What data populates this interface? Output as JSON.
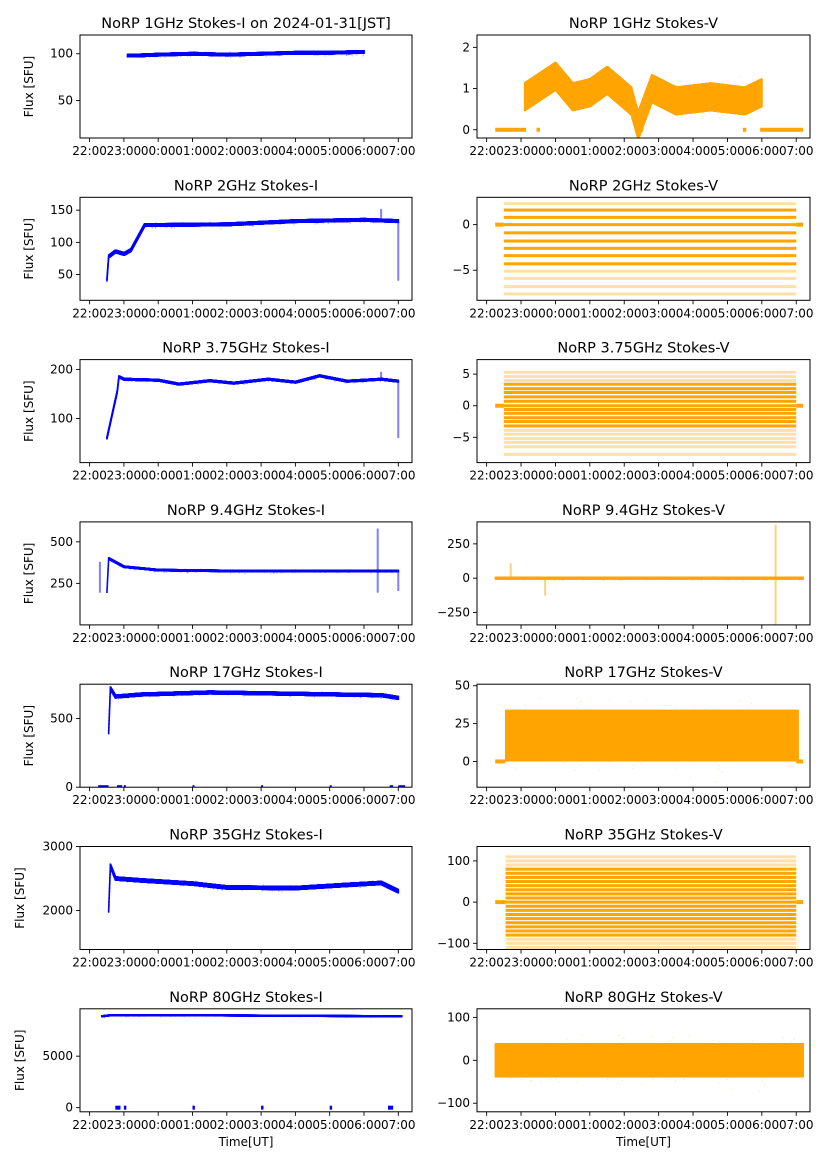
{
  "figure": {
    "colors": {
      "stokes_i": "#0000ff",
      "stokes_v": "#ffa500",
      "axes": "#000000"
    },
    "x_ticks": [
      "22:00",
      "23:00",
      "00:00",
      "01:00",
      "02:00",
      "03:00",
      "04:00",
      "05:00",
      "06:00",
      "07:00"
    ],
    "x_tick_hours": [
      0,
      1,
      2,
      3,
      4,
      5,
      6,
      7,
      8,
      9
    ],
    "x_range_hours": [
      -0.28,
      9.4
    ],
    "xlabel": "Time[UT]",
    "ylabel": "Flux [SFU]"
  },
  "chart_data": [
    {
      "id": "1ghz-i",
      "type": "scatter",
      "title": "NoRP 1GHz Stokes-I on 2024-01-31[JST]",
      "ylabel": "Flux [SFU]",
      "xlabel": "",
      "color": "#0000ff",
      "ylim": [
        10,
        120
      ],
      "yticks": [
        50,
        100
      ],
      "series": {
        "start_h": 1.1,
        "end_h": 8.0,
        "rise_to_h": 1.3,
        "start_value": 50,
        "level": [
          [
            1.3,
            98
          ],
          [
            2.0,
            99
          ],
          [
            3.0,
            100
          ],
          [
            4.0,
            99
          ],
          [
            5.0,
            100
          ],
          [
            6.0,
            101
          ],
          [
            7.0,
            101
          ],
          [
            8.0,
            102
          ]
        ],
        "spread": 2
      },
      "dropouts": []
    },
    {
      "id": "1ghz-v",
      "type": "scatter",
      "title": "NoRP 1GHz Stokes-V",
      "ylabel": "",
      "xlabel": "",
      "color": "#ffa500",
      "ylim": [
        -0.2,
        2.3
      ],
      "yticks": [
        0,
        1,
        2
      ],
      "series": {
        "start_h": 1.1,
        "end_h": 8.0,
        "level": [
          [
            1.1,
            0.8
          ],
          [
            2.0,
            1.3
          ],
          [
            2.5,
            0.8
          ],
          [
            3.0,
            0.9
          ],
          [
            3.5,
            1.2
          ],
          [
            4.2,
            0.7
          ],
          [
            4.4,
            0.1
          ],
          [
            4.8,
            1.0
          ],
          [
            5.5,
            0.7
          ],
          [
            6.5,
            0.8
          ],
          [
            7.5,
            0.7
          ],
          [
            8.0,
            0.9
          ]
        ],
        "spread": 0.35
      },
      "zero_segments": [
        [
          0.25,
          1.15
        ],
        [
          1.45,
          1.55
        ],
        [
          4.45,
          4.55
        ],
        [
          7.45,
          7.55
        ],
        [
          7.95,
          9.2
        ]
      ]
    },
    {
      "id": "2ghz-i",
      "type": "scatter",
      "title": "NoRP 2GHz Stokes-I",
      "ylabel": "Flux [SFU]",
      "xlabel": "",
      "color": "#0000ff",
      "ylim": [
        10,
        170
      ],
      "yticks": [
        50,
        100,
        150
      ],
      "series": {
        "start_h": 0.5,
        "end_h": 9.0,
        "level": [
          [
            0.5,
            42
          ],
          [
            0.55,
            78
          ],
          [
            0.75,
            86
          ],
          [
            1.0,
            82
          ],
          [
            1.2,
            88
          ],
          [
            1.6,
            127
          ],
          [
            2.0,
            127
          ],
          [
            4.0,
            128
          ],
          [
            6.0,
            133
          ],
          [
            8.0,
            135
          ],
          [
            9.0,
            133
          ]
        ],
        "spread": 3
      },
      "spikes": [
        [
          8.5,
          152
        ],
        [
          9.0,
          42
        ]
      ]
    },
    {
      "id": "2ghz-v",
      "type": "bands",
      "title": "NoRP 2GHz Stokes-V",
      "ylabel": "",
      "xlabel": "",
      "color": "#ffa500",
      "ylim": [
        -8.3,
        3
      ],
      "yticks": [
        0,
        -5
      ],
      "bands": {
        "start_h": 0.5,
        "end_h": 9.0,
        "values": [
          2.3,
          1.6,
          0.8,
          0,
          -0.9,
          -1.8,
          -2.6,
          -3.4,
          -4.3,
          -5.1,
          -5.9,
          -6.8,
          -7.6
        ],
        "dense_range": [
          -4.3,
          1.6
        ]
      },
      "zero_segments": [
        [
          0.25,
          0.5
        ],
        [
          9.0,
          9.2
        ]
      ]
    },
    {
      "id": "375ghz-i",
      "type": "scatter",
      "title": "NoRP 3.75GHz Stokes-I",
      "ylabel": "Flux [SFU]",
      "xlabel": "",
      "color": "#0000ff",
      "ylim": [
        10,
        220
      ],
      "yticks": [
        100,
        200
      ],
      "series": {
        "start_h": 0.5,
        "end_h": 9.0,
        "level": [
          [
            0.5,
            60
          ],
          [
            0.8,
            155
          ],
          [
            0.85,
            185
          ],
          [
            1.0,
            180
          ],
          [
            2.0,
            178
          ],
          [
            2.6,
            170
          ],
          [
            3.5,
            177
          ],
          [
            4.2,
            172
          ],
          [
            5.2,
            180
          ],
          [
            6.0,
            174
          ],
          [
            6.7,
            187
          ],
          [
            7.5,
            176
          ],
          [
            8.5,
            180
          ],
          [
            9.0,
            176
          ]
        ],
        "spread": 3
      },
      "spikes": [
        [
          8.5,
          195
        ],
        [
          9.0,
          62
        ]
      ]
    },
    {
      "id": "375ghz-v",
      "type": "bands",
      "title": "NoRP 3.75GHz Stokes-V",
      "ylabel": "",
      "xlabel": "",
      "color": "#ffa500",
      "ylim": [
        -9,
        7.3
      ],
      "yticks": [
        -5,
        0,
        5
      ],
      "bands": {
        "start_h": 0.5,
        "end_h": 9.0,
        "values": [
          5.3,
          4.6,
          4.0,
          3.4,
          2.7,
          2.1,
          1.4,
          0.7,
          0,
          -0.6,
          -1.2,
          -1.9,
          -2.5,
          -3.2,
          -3.9,
          -4.5,
          -5.2,
          -5.8,
          -6.5,
          -7.7
        ],
        "dense_range": [
          -3.2,
          3.4
        ]
      },
      "zero_segments": [
        [
          0.25,
          0.5
        ],
        [
          9.0,
          9.2
        ]
      ]
    },
    {
      "id": "94ghz-i",
      "type": "scatter",
      "title": "NoRP 9.4GHz Stokes-I",
      "ylabel": "Flux [SFU]",
      "xlabel": "",
      "color": "#0000ff",
      "ylim": [
        0,
        620
      ],
      "yticks": [
        250,
        500
      ],
      "series": {
        "start_h": 0.5,
        "end_h": 9.0,
        "level": [
          [
            0.5,
            200
          ],
          [
            0.55,
            400
          ],
          [
            1.0,
            350
          ],
          [
            2.0,
            330
          ],
          [
            4.0,
            325
          ],
          [
            8.0,
            325
          ],
          [
            9.0,
            325
          ]
        ],
        "spread": 8
      },
      "spikes": [
        [
          8.4,
          580
        ],
        [
          8.4,
          200
        ],
        [
          0.3,
          380
        ],
        [
          9.0,
          210
        ]
      ]
    },
    {
      "id": "94ghz-v",
      "type": "scatter",
      "title": "NoRP 9.4GHz Stokes-V",
      "ylabel": "",
      "xlabel": "",
      "color": "#ffa500",
      "ylim": [
        -340,
        410
      ],
      "yticks": [
        -250,
        0,
        250
      ],
      "series": {
        "start_h": 0.25,
        "end_h": 9.2,
        "level": [
          [
            0.25,
            0
          ],
          [
            9.2,
            0
          ]
        ],
        "spread": 10
      },
      "spikes": [
        [
          8.4,
          390
        ],
        [
          8.4,
          -330
        ],
        [
          0.7,
          110
        ],
        [
          1.7,
          -120
        ]
      ]
    },
    {
      "id": "17ghz-i",
      "type": "scatter",
      "title": "NoRP 17GHz Stokes-I",
      "ylabel": "Flux [SFU]",
      "xlabel": "",
      "color": "#0000ff",
      "ylim": [
        0,
        750
      ],
      "yticks": [
        0,
        500
      ],
      "series": {
        "start_h": 0.55,
        "end_h": 9.0,
        "level": [
          [
            0.55,
            400
          ],
          [
            0.6,
            720
          ],
          [
            0.75,
            660
          ],
          [
            1.5,
            675
          ],
          [
            3.5,
            690
          ],
          [
            6.0,
            680
          ],
          [
            8.5,
            670
          ],
          [
            9.0,
            650
          ]
        ],
        "spread": 15
      },
      "zero_segments": [
        [
          0.25,
          0.55
        ],
        [
          0.8,
          0.95
        ],
        [
          1.0,
          1.05
        ],
        [
          3.0,
          3.05
        ],
        [
          5.0,
          5.05
        ],
        [
          7.0,
          7.05
        ],
        [
          8.75,
          8.85
        ],
        [
          9.0,
          9.2
        ]
      ]
    },
    {
      "id": "17ghz-v",
      "type": "scatter",
      "title": "NoRP 17GHz Stokes-V",
      "ylabel": "",
      "xlabel": "",
      "color": "#ffa500",
      "ylim": [
        -17,
        51
      ],
      "yticks": [
        0,
        25,
        50
      ],
      "series": {
        "start_h": 0.55,
        "end_h": 9.05,
        "level": [
          [
            0.55,
            17
          ],
          [
            9.05,
            17
          ]
        ],
        "spread": 17
      },
      "zero_segments": [
        [
          0.25,
          0.55
        ],
        [
          9.0,
          9.2
        ]
      ]
    },
    {
      "id": "35ghz-i",
      "type": "scatter",
      "title": "NoRP 35GHz Stokes-I",
      "ylabel": "Flux [SFU]",
      "xlabel": "",
      "color": "#0000ff",
      "ylim": [
        1390,
        3000
      ],
      "yticks": [
        2000,
        3000
      ],
      "series": {
        "start_h": 0.55,
        "end_h": 9.0,
        "level": [
          [
            0.55,
            2000
          ],
          [
            0.6,
            2700
          ],
          [
            0.75,
            2500
          ],
          [
            1.5,
            2470
          ],
          [
            3.0,
            2420
          ],
          [
            4.0,
            2360
          ],
          [
            6.0,
            2350
          ],
          [
            7.5,
            2400
          ],
          [
            8.5,
            2430
          ],
          [
            9.0,
            2300
          ]
        ],
        "spread": 35
      }
    },
    {
      "id": "35ghz-v",
      "type": "bands",
      "title": "NoRP 35GHz Stokes-V",
      "ylabel": "",
      "xlabel": "",
      "color": "#ffa500",
      "ylim": [
        -115,
        135
      ],
      "yticks": [
        -100,
        0,
        100
      ],
      "bands": {
        "start_h": 0.55,
        "end_h": 9.0,
        "values": [
          110,
          100,
          90,
          80,
          70,
          60,
          50,
          40,
          30,
          20,
          10,
          0,
          -10,
          -20,
          -30,
          -40,
          -50,
          -60,
          -70,
          -80,
          -90,
          -100,
          -110
        ],
        "dense_range": [
          -80,
          80
        ]
      },
      "zero_segments": [
        [
          0.25,
          0.55
        ],
        [
          9.0,
          9.2
        ]
      ]
    },
    {
      "id": "80ghz-i",
      "type": "scatter",
      "title": "NoRP 80GHz Stokes-I",
      "ylabel": "Flux [SFU]",
      "xlabel": "Time[UT]",
      "color": "#0000ff",
      "ylim": [
        -400,
        9600
      ],
      "yticks": [
        0,
        5000
      ],
      "series": {
        "start_h": 0.35,
        "end_h": 9.1,
        "level": [
          [
            0.35,
            8900
          ],
          [
            0.6,
            9000
          ],
          [
            3.0,
            9000
          ],
          [
            6.0,
            8950
          ],
          [
            9.1,
            8900
          ]
        ],
        "spread": 80
      },
      "zero_segments": [
        [
          0.75,
          0.9
        ],
        [
          1.0,
          1.07
        ],
        [
          3.0,
          3.07
        ],
        [
          5.0,
          5.07
        ],
        [
          7.0,
          7.07
        ],
        [
          8.7,
          8.85
        ]
      ]
    },
    {
      "id": "80ghz-v",
      "type": "scatter",
      "title": "NoRP 80GHz Stokes-V",
      "ylabel": "",
      "xlabel": "Time[UT]",
      "color": "#ffa500",
      "ylim": [
        -120,
        120
      ],
      "yticks": [
        -100,
        0,
        100
      ],
      "series": {
        "start_h": 0.25,
        "end_h": 9.2,
        "level": [
          [
            0.25,
            0
          ],
          [
            9.2,
            0
          ]
        ],
        "spread": 40
      }
    }
  ]
}
